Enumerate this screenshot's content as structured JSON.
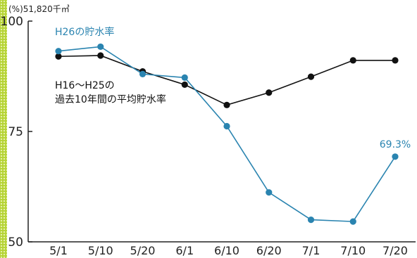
{
  "chart_data": {
    "type": "line",
    "unit_label": "(%)51,820千㎥",
    "categories": [
      "5/1",
      "5/10",
      "5/20",
      "6/1",
      "6/10",
      "6/20",
      "7/1",
      "7/10",
      "7/20"
    ],
    "ylim": [
      50,
      100
    ],
    "yticks": [
      "100",
      "75",
      "50"
    ],
    "grid": false,
    "series": [
      {
        "name": "H26の貯水率",
        "color": "#2a84b0",
        "values": [
          93.2,
          94.2,
          88.0,
          87.2,
          76.2,
          61.2,
          55.0,
          54.6,
          69.3
        ],
        "end_label": "69.3%"
      },
      {
        "name": "H16〜H25の過去10年間の平均貯水率",
        "name_lines": [
          "H16〜H25の",
          "過去10年間の平均貯水率"
        ],
        "color": "#111111",
        "values": [
          92.0,
          92.2,
          88.6,
          85.6,
          81.0,
          83.8,
          87.4,
          91.1,
          91.1
        ]
      }
    ]
  },
  "colors": {
    "accent_strip": "#b5d334",
    "axis": "#222222"
  }
}
